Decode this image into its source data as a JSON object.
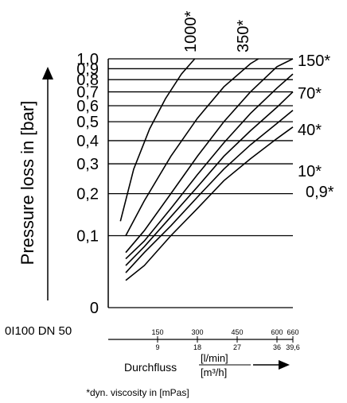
{
  "chart_data": {
    "type": "line",
    "title": "",
    "ylabel": "Pressure loss in [bar]",
    "xlabel": "Durchfluss",
    "xunit_top": "[l/min]",
    "xunit_bottom": "[m³/h]",
    "model_label": "0I100 DN 50",
    "footnote": "*dyn. viscosity in [mPas]",
    "y_scale": "log(p + 0.1)",
    "ylim": [
      0,
      1.0
    ],
    "xlim": [
      0,
      660
    ],
    "y_ticks": [
      {
        "value": 0,
        "label": "0"
      },
      {
        "value": 0.1,
        "label": "0,1"
      },
      {
        "value": 0.2,
        "label": "0,2"
      },
      {
        "value": 0.3,
        "label": "0,3"
      },
      {
        "value": 0.4,
        "label": "0,4"
      },
      {
        "value": 0.5,
        "label": "0,5"
      },
      {
        "value": 0.6,
        "label": "0,6"
      },
      {
        "value": 0.7,
        "label": "0,7"
      },
      {
        "value": 0.8,
        "label": "0,8"
      },
      {
        "value": 0.9,
        "label": "0,9"
      },
      {
        "value": 1.0,
        "label": "1,0"
      }
    ],
    "x_ticks": [
      {
        "value": 150,
        "lpm": "150",
        "m3h": "9"
      },
      {
        "value": 300,
        "lpm": "300",
        "m3h": "18"
      },
      {
        "value": 450,
        "lpm": "450",
        "m3h": "27"
      },
      {
        "value": 600,
        "lpm": "600",
        "m3h": "36"
      },
      {
        "value": 660,
        "lpm": "660",
        "m3h": "39,6"
      }
    ],
    "grid": true,
    "series": [
      {
        "name": "0,9*",
        "x": [
          30,
          100,
          200,
          300,
          400,
          500,
          600,
          660
        ],
        "y": [
          0.03,
          0.05,
          0.1,
          0.16,
          0.24,
          0.32,
          0.41,
          0.47
        ]
      },
      {
        "name": "10*",
        "x": [
          30,
          100,
          200,
          300,
          400,
          500,
          600,
          660
        ],
        "y": [
          0.04,
          0.07,
          0.12,
          0.19,
          0.28,
          0.38,
          0.49,
          0.57
        ]
      },
      {
        "name": "40*",
        "x": [
          30,
          100,
          200,
          300,
          400,
          500,
          600,
          660
        ],
        "y": [
          0.05,
          0.08,
          0.14,
          0.22,
          0.33,
          0.45,
          0.59,
          0.7
        ]
      },
      {
        "name": "70*",
        "x": [
          30,
          100,
          200,
          300,
          400,
          500,
          600,
          660
        ],
        "y": [
          0.06,
          0.09,
          0.16,
          0.26,
          0.39,
          0.55,
          0.73,
          0.85
        ]
      },
      {
        "name": "150*",
        "x": [
          30,
          100,
          200,
          300,
          400,
          500,
          600,
          660
        ],
        "y": [
          0.07,
          0.11,
          0.2,
          0.33,
          0.5,
          0.7,
          0.92,
          1.0
        ]
      },
      {
        "name": "350*",
        "x": [
          30,
          100,
          200,
          300,
          400,
          500,
          530
        ],
        "y": [
          0.1,
          0.18,
          0.33,
          0.52,
          0.74,
          0.95,
          1.0
        ]
      },
      {
        "name": "1000*",
        "x": [
          10,
          60,
          120,
          180,
          240,
          290
        ],
        "y": [
          0.13,
          0.28,
          0.46,
          0.65,
          0.85,
          1.0
        ]
      }
    ]
  }
}
